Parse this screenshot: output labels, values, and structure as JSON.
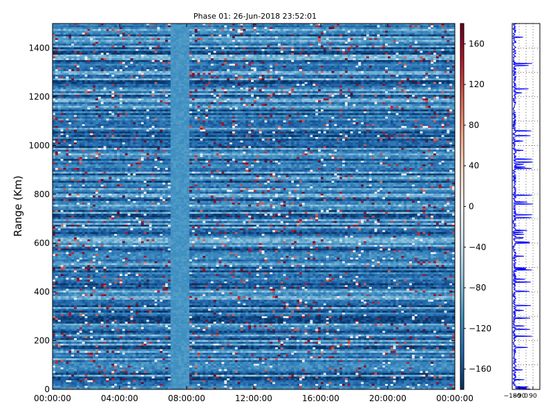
{
  "chart_data": [
    {
      "type": "heatmap",
      "title": "Phase 01: 26-Jun-2018 23:52:01",
      "xlabel": "",
      "ylabel": "Range (Km)",
      "x_tick_labels": [
        "00:00:00",
        "04:00:00",
        "08:00:00",
        "12:00:00",
        "16:00:00",
        "20:00:00",
        "00:00:00"
      ],
      "xlim_hours": [
        0,
        24
      ],
      "y_ticks": [
        0,
        200,
        400,
        600,
        800,
        1000,
        1200,
        1400
      ],
      "ylim": [
        0,
        1500
      ],
      "colorbar": {
        "colormap": "RdBu_r",
        "range": [
          -180,
          180
        ],
        "ticks": [
          -160,
          -120,
          -80,
          -40,
          0,
          40,
          80,
          120,
          160
        ],
        "tick_labels": [
          "−160",
          "−120",
          "−80",
          "−40",
          "0",
          "40",
          "80",
          "120",
          "160"
        ]
      },
      "gap_hours": [
        7.0,
        8.1
      ],
      "grid": false,
      "description": "Phase (degrees) vs time and range, mostly -180 to -60 with sparse positive values"
    },
    {
      "type": "line",
      "title": "",
      "xlabel": "",
      "ylabel": "",
      "x_tick_labels": [
        "−180",
        "−90",
        "0",
        "90"
      ],
      "xlim": [
        -180,
        180
      ],
      "ylim": [
        0,
        1500
      ],
      "series_color": "#0000ff",
      "grid": true
    }
  ]
}
